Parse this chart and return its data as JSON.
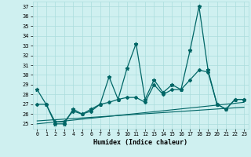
{
  "xlabel": "Humidex (Indice chaleur)",
  "background_color": "#cff0f0",
  "grid_color": "#aadddd",
  "line_color": "#006666",
  "x_values": [
    0,
    1,
    2,
    3,
    4,
    5,
    6,
    7,
    8,
    9,
    10,
    11,
    12,
    13,
    14,
    15,
    16,
    17,
    18,
    19,
    20,
    21,
    22,
    23
  ],
  "series1": [
    28.5,
    27.0,
    25.0,
    25.0,
    26.5,
    26.0,
    26.5,
    27.0,
    29.8,
    27.5,
    30.7,
    33.2,
    27.5,
    29.5,
    28.2,
    29.0,
    28.5,
    32.5,
    37.0,
    30.5,
    27.0,
    26.5,
    27.5,
    27.5
  ],
  "series2": [
    27.0,
    27.0,
    25.2,
    25.2,
    26.3,
    26.0,
    26.3,
    27.0,
    27.2,
    27.5,
    27.7,
    27.7,
    27.2,
    29.0,
    28.0,
    28.5,
    28.5,
    29.5,
    30.5,
    30.3,
    27.0,
    26.5,
    27.5,
    27.5
  ],
  "trend1": [
    25.0,
    27.2
  ],
  "trend2": [
    25.3,
    26.7
  ],
  "ylim": [
    24.5,
    37.5
  ],
  "xlim": [
    -0.5,
    23.5
  ],
  "yticks": [
    25,
    26,
    27,
    28,
    29,
    30,
    31,
    32,
    33,
    34,
    35,
    36,
    37
  ],
  "xticks": [
    0,
    1,
    2,
    3,
    4,
    5,
    6,
    7,
    8,
    9,
    10,
    11,
    12,
    13,
    14,
    15,
    16,
    17,
    18,
    19,
    20,
    21,
    22,
    23
  ]
}
